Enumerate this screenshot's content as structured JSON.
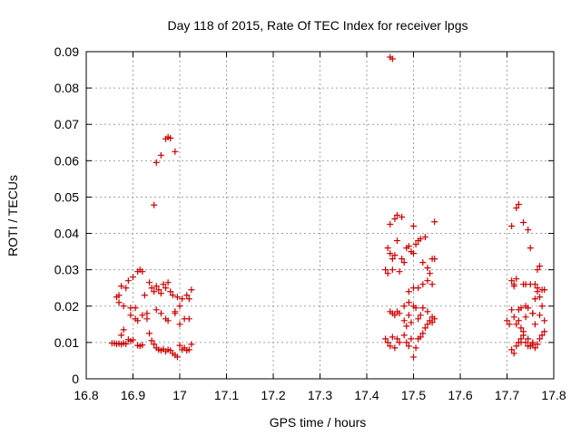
{
  "chart_data": {
    "type": "scatter",
    "title": "Day 118 of 2015, Rate Of TEC Index for receiver lpgs",
    "xlabel": "GPS time / hours",
    "ylabel": "ROTI / TECUs",
    "xlim": [
      16.8,
      17.8
    ],
    "ylim": [
      0,
      0.09
    ],
    "xticks": [
      "16.8",
      "16.9",
      "17",
      "17.1",
      "17.2",
      "17.3",
      "17.4",
      "17.5",
      "17.6",
      "17.7",
      "17.8"
    ],
    "yticks": [
      "0",
      "0.01",
      "0.02",
      "0.03",
      "0.04",
      "0.05",
      "0.06",
      "0.07",
      "0.08",
      "0.09"
    ],
    "grid": true,
    "marker_color": "#cc0000",
    "marker": "plus",
    "series": [
      {
        "name": "ROTI",
        "points": [
          [
            16.855,
            0.0098
          ],
          [
            16.86,
            0.0098
          ],
          [
            16.865,
            0.0096
          ],
          [
            16.87,
            0.0097
          ],
          [
            16.875,
            0.0095
          ],
          [
            16.88,
            0.0098
          ],
          [
            16.885,
            0.0096
          ],
          [
            16.89,
            0.0108
          ],
          [
            16.895,
            0.0104
          ],
          [
            16.9,
            0.0107
          ],
          [
            16.91,
            0.0092
          ],
          [
            16.915,
            0.009
          ],
          [
            16.92,
            0.0093
          ],
          [
            16.935,
            0.0125
          ],
          [
            16.94,
            0.0105
          ],
          [
            16.945,
            0.0095
          ],
          [
            16.95,
            0.0085
          ],
          [
            16.955,
            0.008
          ],
          [
            16.96,
            0.0078
          ],
          [
            16.965,
            0.0082
          ],
          [
            16.97,
            0.0075
          ],
          [
            16.975,
            0.008
          ],
          [
            16.98,
            0.0078
          ],
          [
            16.985,
            0.007
          ],
          [
            16.99,
            0.0065
          ],
          [
            16.995,
            0.006
          ],
          [
            17.0,
            0.0092
          ],
          [
            17.005,
            0.008
          ],
          [
            17.01,
            0.0085
          ],
          [
            17.015,
            0.0078
          ],
          [
            17.02,
            0.008
          ],
          [
            17.025,
            0.0095
          ],
          [
            16.88,
            0.0135
          ],
          [
            16.875,
            0.012
          ],
          [
            16.87,
            0.023
          ],
          [
            16.865,
            0.0225
          ],
          [
            16.87,
            0.021
          ],
          [
            16.875,
            0.0255
          ],
          [
            16.88,
            0.02
          ],
          [
            16.885,
            0.025
          ],
          [
            16.89,
            0.027
          ],
          [
            16.895,
            0.0195
          ],
          [
            16.9,
            0.028
          ],
          [
            16.905,
            0.0195
          ],
          [
            16.91,
            0.0295
          ],
          [
            16.915,
            0.03
          ],
          [
            16.92,
            0.0295
          ],
          [
            16.925,
            0.023
          ],
          [
            16.93,
            0.018
          ],
          [
            16.935,
            0.0265
          ],
          [
            16.94,
            0.025
          ],
          [
            16.945,
            0.024
          ],
          [
            16.95,
            0.0255
          ],
          [
            16.955,
            0.0245
          ],
          [
            16.96,
            0.0235
          ],
          [
            16.965,
            0.026
          ],
          [
            16.97,
            0.025
          ],
          [
            16.975,
            0.0265
          ],
          [
            16.98,
            0.024
          ],
          [
            16.985,
            0.023
          ],
          [
            16.99,
            0.0185
          ],
          [
            16.995,
            0.0225
          ],
          [
            17.0,
            0.02
          ],
          [
            17.005,
            0.022
          ],
          [
            17.01,
            0.0165
          ],
          [
            17.015,
            0.023
          ],
          [
            17.02,
            0.0165
          ],
          [
            17.025,
            0.0245
          ],
          [
            16.895,
            0.0175
          ],
          [
            16.905,
            0.0165
          ],
          [
            16.91,
            0.016
          ],
          [
            16.92,
            0.0175
          ],
          [
            16.93,
            0.0165
          ],
          [
            16.95,
            0.019
          ],
          [
            16.96,
            0.018
          ],
          [
            16.97,
            0.0165
          ],
          [
            16.975,
            0.016
          ],
          [
            16.99,
            0.018
          ],
          [
            17.0,
            0.015
          ],
          [
            17.02,
            0.022
          ],
          [
            16.945,
            0.0478
          ],
          [
            16.95,
            0.0595
          ],
          [
            16.96,
            0.0615
          ],
          [
            16.97,
            0.066
          ],
          [
            16.975,
            0.0665
          ],
          [
            16.98,
            0.0662
          ],
          [
            16.99,
            0.0625
          ],
          [
            17.44,
            0.011
          ],
          [
            17.445,
            0.01
          ],
          [
            17.45,
            0.009
          ],
          [
            17.455,
            0.0115
          ],
          [
            17.46,
            0.0085
          ],
          [
            17.465,
            0.011
          ],
          [
            17.47,
            0.01
          ],
          [
            17.48,
            0.012
          ],
          [
            17.485,
            0.01
          ],
          [
            17.49,
            0.009
          ],
          [
            17.495,
            0.011
          ],
          [
            17.5,
            0.006
          ],
          [
            17.505,
            0.0085
          ],
          [
            17.51,
            0.011
          ],
          [
            17.515,
            0.0115
          ],
          [
            17.52,
            0.0125
          ],
          [
            17.525,
            0.014
          ],
          [
            17.53,
            0.015
          ],
          [
            17.535,
            0.016
          ],
          [
            17.54,
            0.017
          ],
          [
            17.545,
            0.0165
          ],
          [
            17.45,
            0.0185
          ],
          [
            17.455,
            0.018
          ],
          [
            17.46,
            0.0175
          ],
          [
            17.465,
            0.0185
          ],
          [
            17.47,
            0.018
          ],
          [
            17.48,
            0.016
          ],
          [
            17.485,
            0.0145
          ],
          [
            17.49,
            0.0175
          ],
          [
            17.495,
            0.0155
          ],
          [
            17.5,
            0.02
          ],
          [
            17.505,
            0.0195
          ],
          [
            17.51,
            0.0165
          ],
          [
            17.515,
            0.0175
          ],
          [
            17.52,
            0.0195
          ],
          [
            17.53,
            0.0185
          ],
          [
            17.54,
            0.0155
          ],
          [
            17.44,
            0.03
          ],
          [
            17.445,
            0.029
          ],
          [
            17.45,
            0.0345
          ],
          [
            17.455,
            0.033
          ],
          [
            17.46,
            0.034
          ],
          [
            17.465,
            0.038
          ],
          [
            17.47,
            0.0295
          ],
          [
            17.475,
            0.033
          ],
          [
            17.48,
            0.032
          ],
          [
            17.485,
            0.036
          ],
          [
            17.49,
            0.0365
          ],
          [
            17.495,
            0.035
          ],
          [
            17.5,
            0.0345
          ],
          [
            17.505,
            0.037
          ],
          [
            17.51,
            0.038
          ],
          [
            17.515,
            0.0385
          ],
          [
            17.52,
            0.032
          ],
          [
            17.525,
            0.039
          ],
          [
            17.53,
            0.0305
          ],
          [
            17.535,
            0.029
          ],
          [
            17.54,
            0.033
          ],
          [
            17.545,
            0.033
          ],
          [
            17.45,
            0.0425
          ],
          [
            17.46,
            0.044
          ],
          [
            17.465,
            0.045
          ],
          [
            17.475,
            0.0445
          ],
          [
            17.5,
            0.042
          ],
          [
            17.545,
            0.0432
          ],
          [
            17.49,
            0.024
          ],
          [
            17.5,
            0.025
          ],
          [
            17.51,
            0.025
          ],
          [
            17.52,
            0.026
          ],
          [
            17.53,
            0.027
          ],
          [
            17.54,
            0.026
          ],
          [
            17.48,
            0.02
          ],
          [
            17.49,
            0.021
          ],
          [
            17.445,
            0.036
          ],
          [
            17.455,
            0.03
          ],
          [
            17.45,
            0.0885
          ],
          [
            17.455,
            0.088
          ],
          [
            17.7,
            0.016
          ],
          [
            17.705,
            0.015
          ],
          [
            17.71,
            0.008
          ],
          [
            17.715,
            0.007
          ],
          [
            17.72,
            0.009
          ],
          [
            17.725,
            0.01
          ],
          [
            17.73,
            0.011
          ],
          [
            17.735,
            0.012
          ],
          [
            17.74,
            0.01
          ],
          [
            17.745,
            0.009
          ],
          [
            17.75,
            0.009
          ],
          [
            17.755,
            0.0095
          ],
          [
            17.76,
            0.0085
          ],
          [
            17.765,
            0.0095
          ],
          [
            17.77,
            0.011
          ],
          [
            17.775,
            0.012
          ],
          [
            17.78,
            0.013
          ],
          [
            17.71,
            0.027
          ],
          [
            17.715,
            0.026
          ],
          [
            17.72,
            0.0275
          ],
          [
            17.725,
            0.019
          ],
          [
            17.73,
            0.0195
          ],
          [
            17.735,
            0.026
          ],
          [
            17.74,
            0.02
          ],
          [
            17.745,
            0.0195
          ],
          [
            17.75,
            0.026
          ],
          [
            17.755,
            0.018
          ],
          [
            17.76,
            0.015
          ],
          [
            17.765,
            0.025
          ],
          [
            17.77,
            0.0225
          ],
          [
            17.775,
            0.0245
          ],
          [
            17.78,
            0.016
          ],
          [
            17.71,
            0.019
          ],
          [
            17.715,
            0.017
          ],
          [
            17.72,
            0.015
          ],
          [
            17.725,
            0.016
          ],
          [
            17.73,
            0.014
          ],
          [
            17.735,
            0.013
          ],
          [
            17.74,
            0.017
          ],
          [
            17.745,
            0.011
          ],
          [
            17.75,
            0.009
          ],
          [
            17.755,
            0.01
          ],
          [
            17.76,
            0.026
          ],
          [
            17.765,
            0.03
          ],
          [
            17.77,
            0.031
          ],
          [
            17.775,
            0.02
          ],
          [
            17.78,
            0.0245
          ],
          [
            17.71,
            0.042
          ],
          [
            17.72,
            0.047
          ],
          [
            17.725,
            0.048
          ],
          [
            17.735,
            0.043
          ],
          [
            17.745,
            0.041
          ],
          [
            17.75,
            0.036
          ],
          [
            17.715,
            0.0255
          ],
          [
            17.74,
            0.026
          ],
          [
            17.755,
            0.018
          ],
          [
            17.76,
            0.022
          ],
          [
            17.765,
            0.024
          ],
          [
            17.77,
            0.0175
          ],
          [
            17.73,
            0.01
          ]
        ]
      }
    ]
  }
}
